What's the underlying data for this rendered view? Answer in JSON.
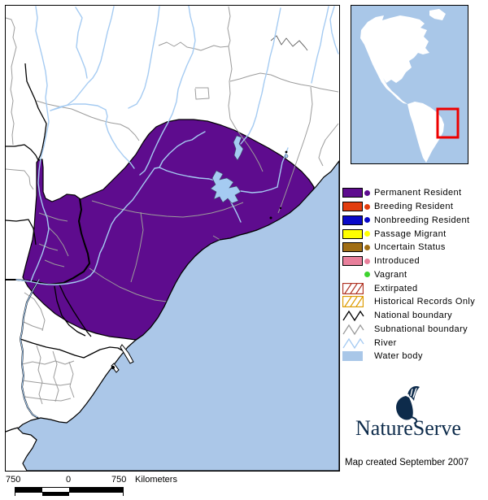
{
  "map": {
    "type": "species-range-map",
    "credit": "Map created September 2007",
    "colors": {
      "range_fill": "#5E0C8E",
      "ocean": "#ABC7E8",
      "river": "#A5CBF2",
      "lake": "#A5CBF2",
      "subnational_boundary": "#9C9C9C",
      "national_boundary": "#000000",
      "land": "#FFFFFF",
      "inset_water": "#A9C7E8",
      "inset_land": "#FFFFFF",
      "inset_highlight": "#EE0000",
      "logo_navy": "#0d2b4b"
    }
  },
  "legend": {
    "items": [
      {
        "label": "Permanent Resident",
        "swatch": "box-dot",
        "color": "#5E0C8E"
      },
      {
        "label": "Breeding Resident",
        "swatch": "box-dot",
        "color": "#E23D0E"
      },
      {
        "label": "Nonbreeding Resident",
        "swatch": "box-dot",
        "color": "#0909C8"
      },
      {
        "label": "Passage Migrant",
        "swatch": "box-dot",
        "color": "#FFFF00"
      },
      {
        "label": "Uncertain Status",
        "swatch": "box-dot",
        "color": "#A06E14"
      },
      {
        "label": "Introduced",
        "swatch": "box-dot",
        "color": "#E87F9B"
      },
      {
        "label": "Vagrant",
        "swatch": "dot",
        "color": "#3ED32F"
      },
      {
        "label": "Extirpated",
        "swatch": "hatch",
        "color": "#B03324"
      },
      {
        "label": "Historical Records Only",
        "swatch": "hatch",
        "color": "#DD9C00"
      },
      {
        "label": "National boundary",
        "swatch": "zigzag",
        "color": "#000000"
      },
      {
        "label": "Subnational boundary",
        "swatch": "zigzag",
        "color": "#9C9C9C"
      },
      {
        "label": "River",
        "swatch": "zigzag",
        "color": "#A5CBF2"
      },
      {
        "label": "Water body",
        "swatch": "box-plain",
        "color": "#A9C7E8"
      }
    ]
  },
  "scalebar": {
    "left_label": "750",
    "zero_label": "0",
    "right_label": "750",
    "unit": "Kilometers"
  },
  "logo": {
    "text": "NatureServe"
  }
}
